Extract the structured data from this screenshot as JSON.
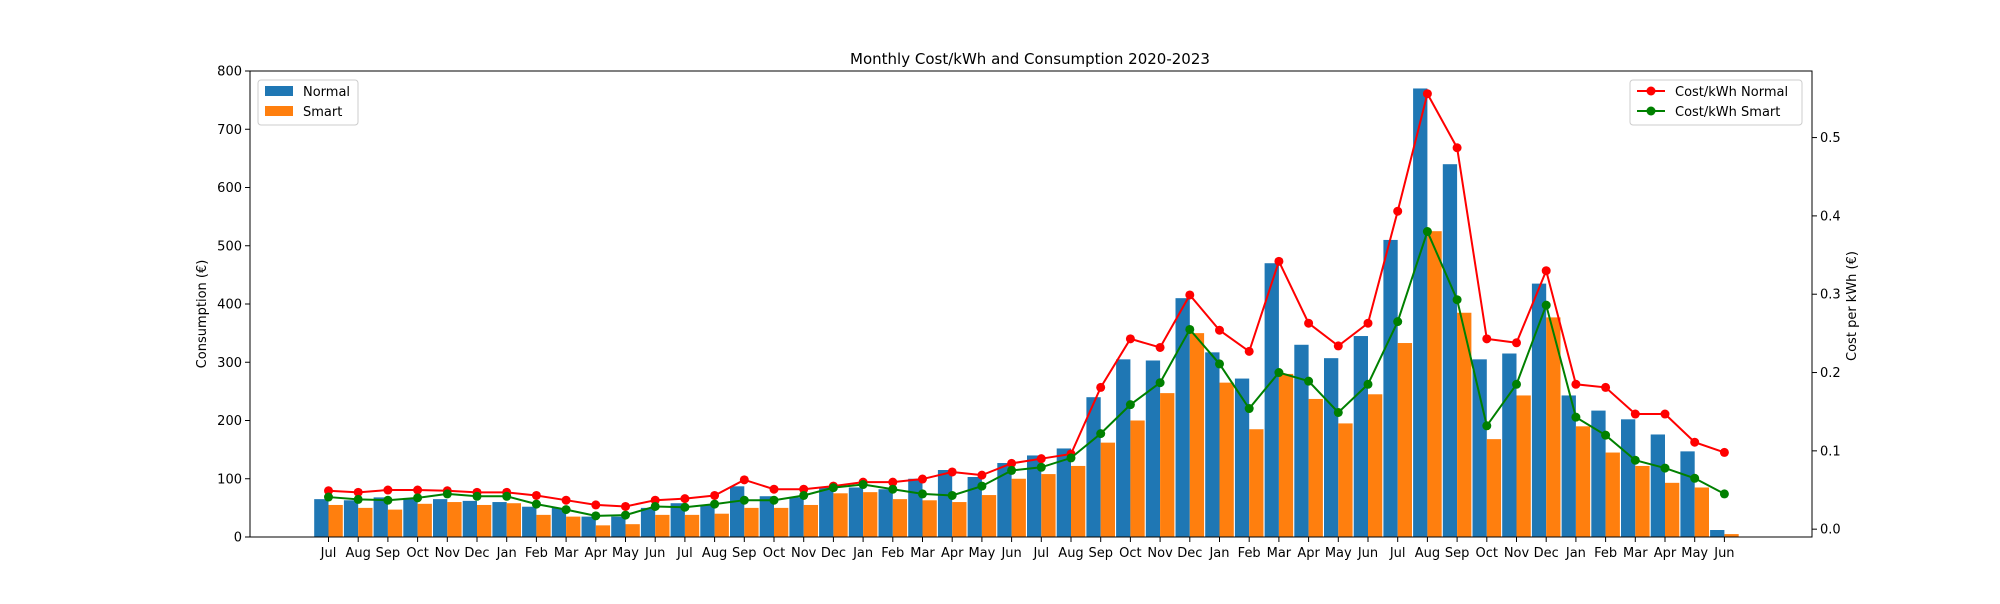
{
  "chart_data": {
    "type": "bar",
    "title": "Monthly Cost/kWh and Consumption 2020-2023",
    "ylabel": "Consumption (€)",
    "y2label": "Cost per kWh (€)",
    "ylim": [
      0,
      800
    ],
    "y2lim": [
      -0.01,
      0.585
    ],
    "yticks": [
      0,
      100,
      200,
      300,
      400,
      500,
      600,
      700,
      800
    ],
    "y2ticks": [
      0.0,
      0.1,
      0.2,
      0.3,
      0.4,
      0.5
    ],
    "categories": [
      "Jul",
      "Aug",
      "Sep",
      "Oct",
      "Nov",
      "Dec",
      "Jan",
      "Feb",
      "Mar",
      "Apr",
      "May",
      "Jun",
      "Jul",
      "Aug",
      "Sep",
      "Oct",
      "Nov",
      "Dec",
      "Jan",
      "Feb",
      "Mar",
      "Apr",
      "May",
      "Jun",
      "Jul",
      "Aug",
      "Sep",
      "Oct",
      "Nov",
      "Dec",
      "Jan",
      "Feb",
      "Mar",
      "Apr",
      "May",
      "Jun",
      "Jul",
      "Aug",
      "Sep",
      "Oct",
      "Nov",
      "Dec",
      "Jan",
      "Feb",
      "Mar",
      "Apr",
      "May",
      "Jun"
    ],
    "bar_series": [
      {
        "name": "Normal",
        "color": "#1f77b4",
        "values": [
          65,
          63,
          68,
          67,
          65,
          62,
          60,
          52,
          50,
          35,
          35,
          50,
          58,
          55,
          87,
          70,
          68,
          85,
          85,
          82,
          100,
          115,
          103,
          127,
          140,
          152,
          240,
          305,
          303,
          410,
          317,
          272,
          470,
          330,
          307,
          345,
          510,
          770,
          640,
          305,
          315,
          435,
          243,
          217,
          202,
          176,
          147,
          12
        ]
      },
      {
        "name": "Smart",
        "color": "#ff7f0e",
        "values": [
          55,
          50,
          47,
          57,
          60,
          55,
          58,
          38,
          35,
          20,
          22,
          38,
          38,
          40,
          50,
          50,
          55,
          75,
          77,
          65,
          63,
          60,
          72,
          100,
          108,
          122,
          162,
          200,
          247,
          350,
          265,
          185,
          280,
          237,
          195,
          245,
          333,
          525,
          385,
          168,
          243,
          377,
          190,
          145,
          122,
          93,
          85,
          5
        ]
      }
    ],
    "line_series": [
      {
        "name": "Cost/kWh Normal",
        "color": "#ff0000",
        "values": [
          0.049,
          0.047,
          0.05,
          0.05,
          0.049,
          0.047,
          0.047,
          0.043,
          0.037,
          0.031,
          0.029,
          0.037,
          0.039,
          0.043,
          0.063,
          0.051,
          0.051,
          0.055,
          0.06,
          0.06,
          0.064,
          0.073,
          0.069,
          0.084,
          0.09,
          0.096,
          0.181,
          0.243,
          0.232,
          0.299,
          0.254,
          0.227,
          0.342,
          0.263,
          0.234,
          0.263,
          0.406,
          0.556,
          0.487,
          0.243,
          0.238,
          0.33,
          0.185,
          0.181,
          0.147,
          0.147,
          0.111,
          0.098
        ]
      },
      {
        "name": "Cost/kWh Smart",
        "color": "#008000",
        "values": [
          0.041,
          0.038,
          0.037,
          0.04,
          0.045,
          0.042,
          0.042,
          0.032,
          0.025,
          0.017,
          0.018,
          0.029,
          0.028,
          0.032,
          0.037,
          0.037,
          0.043,
          0.053,
          0.057,
          0.051,
          0.045,
          0.043,
          0.055,
          0.075,
          0.079,
          0.091,
          0.122,
          0.159,
          0.187,
          0.255,
          0.211,
          0.154,
          0.2,
          0.189,
          0.149,
          0.185,
          0.265,
          0.38,
          0.293,
          0.132,
          0.185,
          0.286,
          0.143,
          0.12,
          0.088,
          0.078,
          0.065,
          0.045
        ]
      }
    ],
    "legend_left": [
      "Normal",
      "Smart"
    ],
    "legend_right": [
      "Cost/kWh Normal",
      "Cost/kWh Smart"
    ],
    "grid": false
  }
}
